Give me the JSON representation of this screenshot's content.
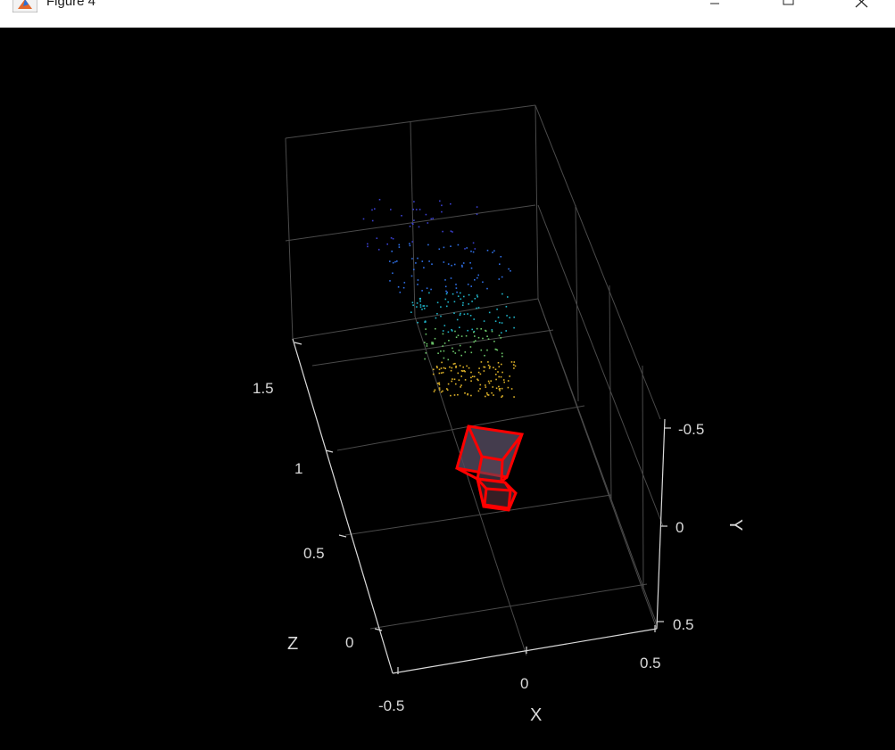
{
  "window": {
    "title": "Figure 4",
    "icon": "matlab-icon",
    "controls": [
      "minimize-icon",
      "maximize-icon",
      "close-icon"
    ]
  },
  "plot": {
    "background": "#000000",
    "axis_color": "#d9d9d9",
    "grid_color": "#4a4a4a",
    "camera_color": "#ff0000",
    "axes": {
      "x": {
        "label": "X",
        "ticks": [
          "-0.5",
          "0",
          "0.5"
        ]
      },
      "y": {
        "label": "Y",
        "ticks": [
          "-0.5",
          "0",
          "0.5"
        ]
      },
      "z": {
        "label": "Z",
        "ticks": [
          "0",
          "0.5",
          "1",
          "1.5"
        ]
      }
    }
  }
}
